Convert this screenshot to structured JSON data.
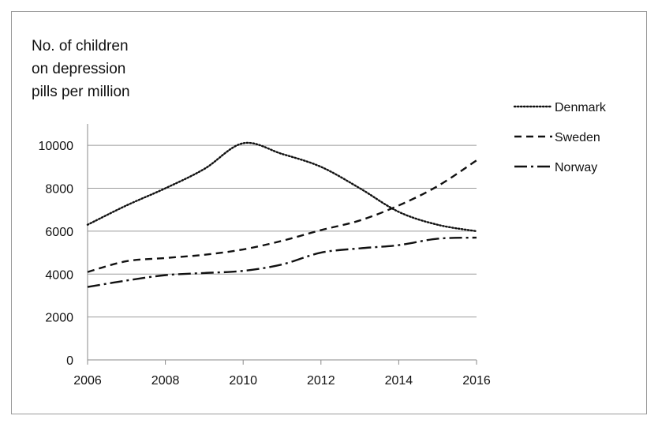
{
  "chart_data": {
    "type": "line",
    "ylabel_lines": [
      "No. of children",
      "on depression",
      "pills per million"
    ],
    "x": [
      2006,
      2007,
      2008,
      2009,
      2010,
      2011,
      2012,
      2013,
      2014,
      2015,
      2016
    ],
    "xticks": [
      "2006",
      "2008",
      "2010",
      "2012",
      "2014",
      "2016"
    ],
    "yticks": [
      "0",
      "2000",
      "4000",
      "6000",
      "8000",
      "10000"
    ],
    "ylim": [
      0,
      11000
    ],
    "xlim": [
      2006,
      2016
    ],
    "grid": "horizontal",
    "legend_position": "right",
    "series": [
      {
        "name": "Denmark",
        "dash": "dotted",
        "values": [
          6300,
          7200,
          8000,
          8900,
          10100,
          9600,
          9000,
          8000,
          6900,
          6300,
          6000
        ]
      },
      {
        "name": "Sweden",
        "dash": "dashed",
        "values": [
          4100,
          4600,
          4750,
          4900,
          5150,
          5550,
          6050,
          6500,
          7200,
          8100,
          9300
        ]
      },
      {
        "name": "Norway",
        "dash": "dashdot",
        "values": [
          3400,
          3700,
          3950,
          4050,
          4150,
          4450,
          5000,
          5200,
          5350,
          5650,
          5700
        ]
      }
    ]
  }
}
